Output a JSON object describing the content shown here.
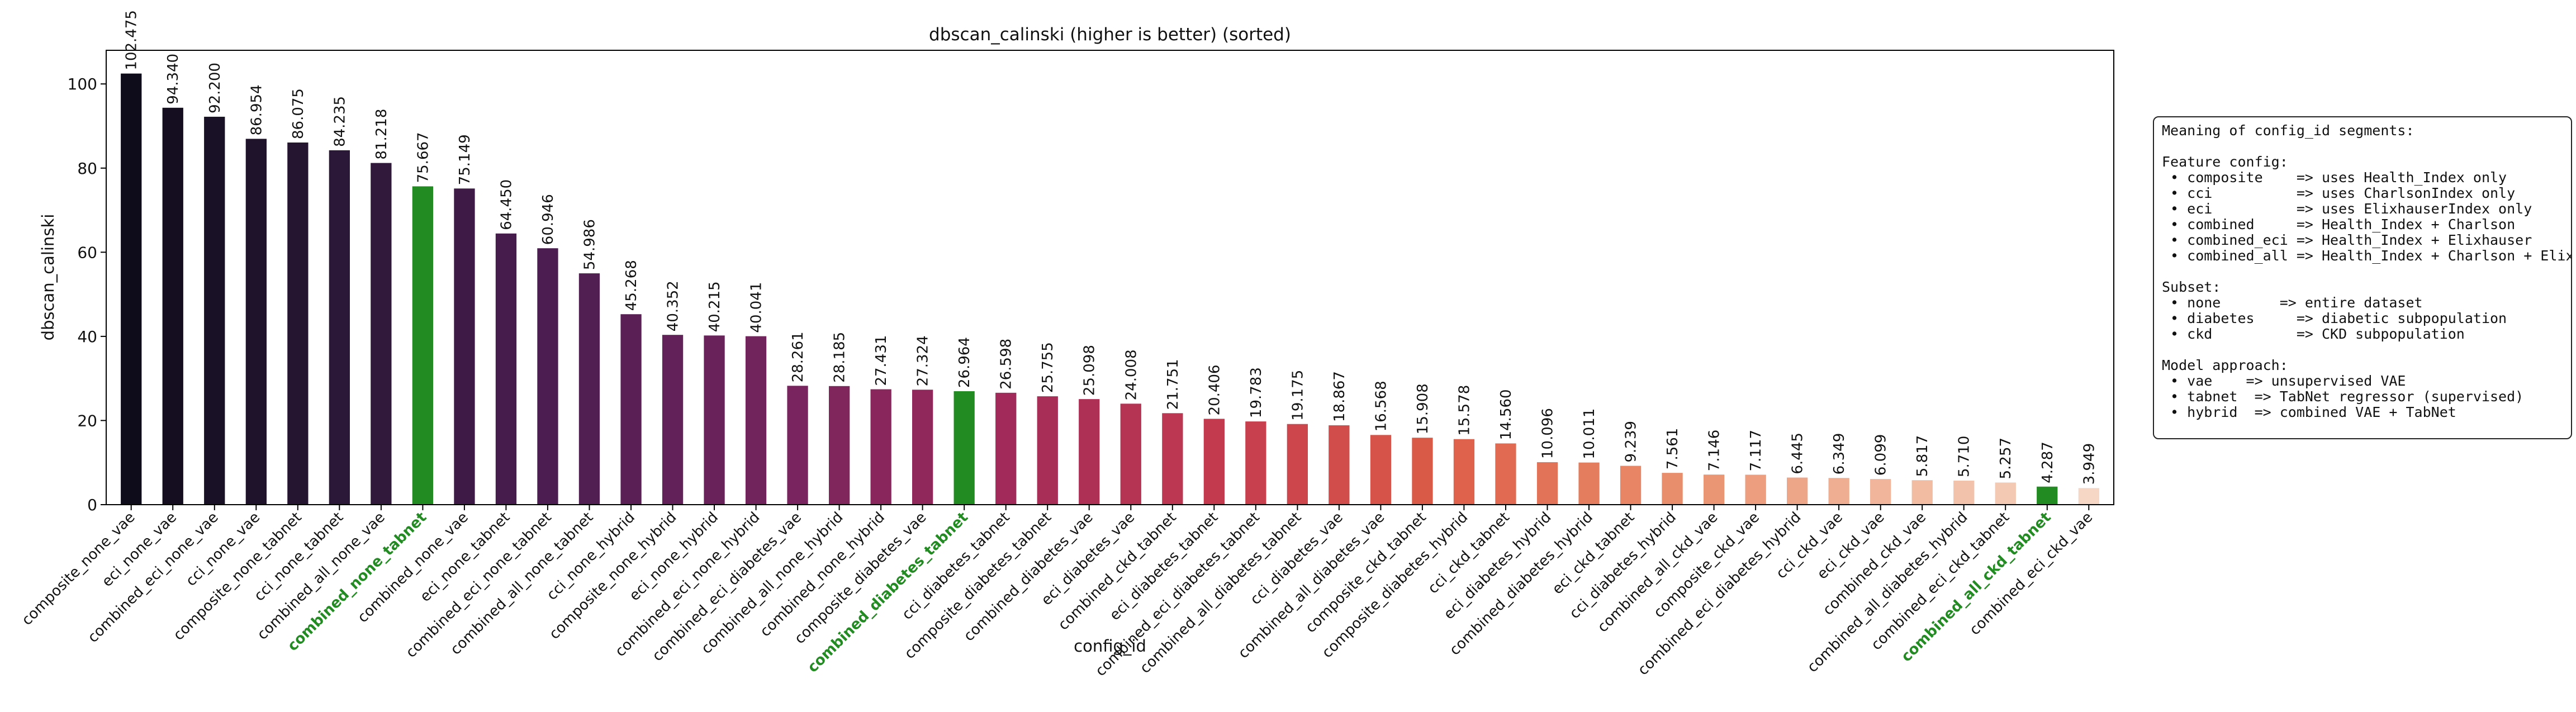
{
  "chart_data": {
    "type": "bar",
    "title": "dbscan_calinski (higher is better) (sorted)",
    "xlabel": "config_id",
    "ylabel": "dbscan_calinski",
    "ylim": [
      0,
      108
    ],
    "yticks": [
      0,
      20,
      40,
      60,
      80,
      100
    ],
    "highlight_color": "#228b22",
    "highlighted": [
      "combined_none_tabnet",
      "combined_diabetes_tabnet",
      "combined_all_ckd_tabnet"
    ],
    "categories": [
      "composite_none_vae",
      "eci_none_vae",
      "combined_eci_none_vae",
      "cci_none_vae",
      "composite_none_tabnet",
      "cci_none_tabnet",
      "combined_all_none_vae",
      "combined_none_tabnet",
      "combined_none_vae",
      "eci_none_tabnet",
      "combined_eci_none_tabnet",
      "combined_all_none_tabnet",
      "cci_none_hybrid",
      "composite_none_hybrid",
      "eci_none_hybrid",
      "combined_eci_none_hybrid",
      "combined_eci_diabetes_vae",
      "combined_all_none_hybrid",
      "combined_none_hybrid",
      "composite_diabetes_vae",
      "combined_diabetes_tabnet",
      "cci_diabetes_tabnet",
      "composite_diabetes_tabnet",
      "combined_diabetes_vae",
      "eci_diabetes_vae",
      "combined_ckd_tabnet",
      "eci_diabetes_tabnet",
      "combined_eci_diabetes_tabnet",
      "combined_all_diabetes_tabnet",
      "cci_diabetes_vae",
      "combined_all_diabetes_vae",
      "composite_ckd_tabnet",
      "composite_diabetes_hybrid",
      "cci_ckd_tabnet",
      "eci_diabetes_hybrid",
      "combined_diabetes_hybrid",
      "eci_ckd_tabnet",
      "cci_diabetes_hybrid",
      "combined_all_ckd_vae",
      "composite_ckd_vae",
      "combined_eci_diabetes_hybrid",
      "cci_ckd_vae",
      "eci_ckd_vae",
      "combined_ckd_vae",
      "combined_all_diabetes_hybrid",
      "combined_eci_ckd_tabnet",
      "combined_all_ckd_tabnet",
      "combined_eci_ckd_vae"
    ],
    "values": [
      102.475,
      94.34,
      92.2,
      86.954,
      86.075,
      84.235,
      81.218,
      75.667,
      75.149,
      64.45,
      60.946,
      54.986,
      45.268,
      40.352,
      40.215,
      40.041,
      28.261,
      28.185,
      27.431,
      27.324,
      26.964,
      26.598,
      25.755,
      25.098,
      24.008,
      21.751,
      20.406,
      19.783,
      19.175,
      18.867,
      16.568,
      15.908,
      15.578,
      14.56,
      10.096,
      10.011,
      9.239,
      7.561,
      7.146,
      7.117,
      6.445,
      6.349,
      6.099,
      5.817,
      5.71,
      5.257,
      4.287,
      3.949
    ],
    "value_labels": [
      "102.475",
      "94.340",
      "92.200",
      "86.954",
      "86.075",
      "84.235",
      "81.218",
      "75.667",
      "75.149",
      "64.450",
      "60.946",
      "54.986",
      "45.268",
      "40.352",
      "40.215",
      "40.041",
      "28.261",
      "28.185",
      "27.431",
      "27.324",
      "26.964",
      "26.598",
      "25.755",
      "25.098",
      "24.008",
      "21.751",
      "20.406",
      "19.783",
      "19.175",
      "18.867",
      "16.568",
      "15.908",
      "15.578",
      "14.560",
      "10.096",
      "10.011",
      "9.239",
      "7.561",
      "7.146",
      "7.117",
      "6.445",
      "6.349",
      "6.099",
      "5.817",
      "5.710",
      "5.257",
      "4.287",
      "3.949"
    ],
    "legend": "none",
    "grid": false
  },
  "annotation_box": {
    "lines": [
      "Meaning of config_id segments:",
      "",
      "Feature config:",
      " • composite    => uses Health_Index only",
      " • cci          => uses CharlsonIndex only",
      " • eci          => uses ElixhauserIndex only",
      " • combined     => Health_Index + Charlson",
      " • combined_eci => Health_Index + Elixhauser",
      " • combined_all => Health_Index + Charlson + Elixhauser",
      "",
      "Subset:",
      " • none       => entire dataset",
      " • diabetes     => diabetic subpopulation",
      " • ckd          => CKD subpopulation",
      "",
      "Model approach:",
      " • vae    => unsupervised VAE",
      " • tabnet  => TabNet regressor (supervised)",
      " • hybrid  => combined VAE + TabNet"
    ]
  }
}
